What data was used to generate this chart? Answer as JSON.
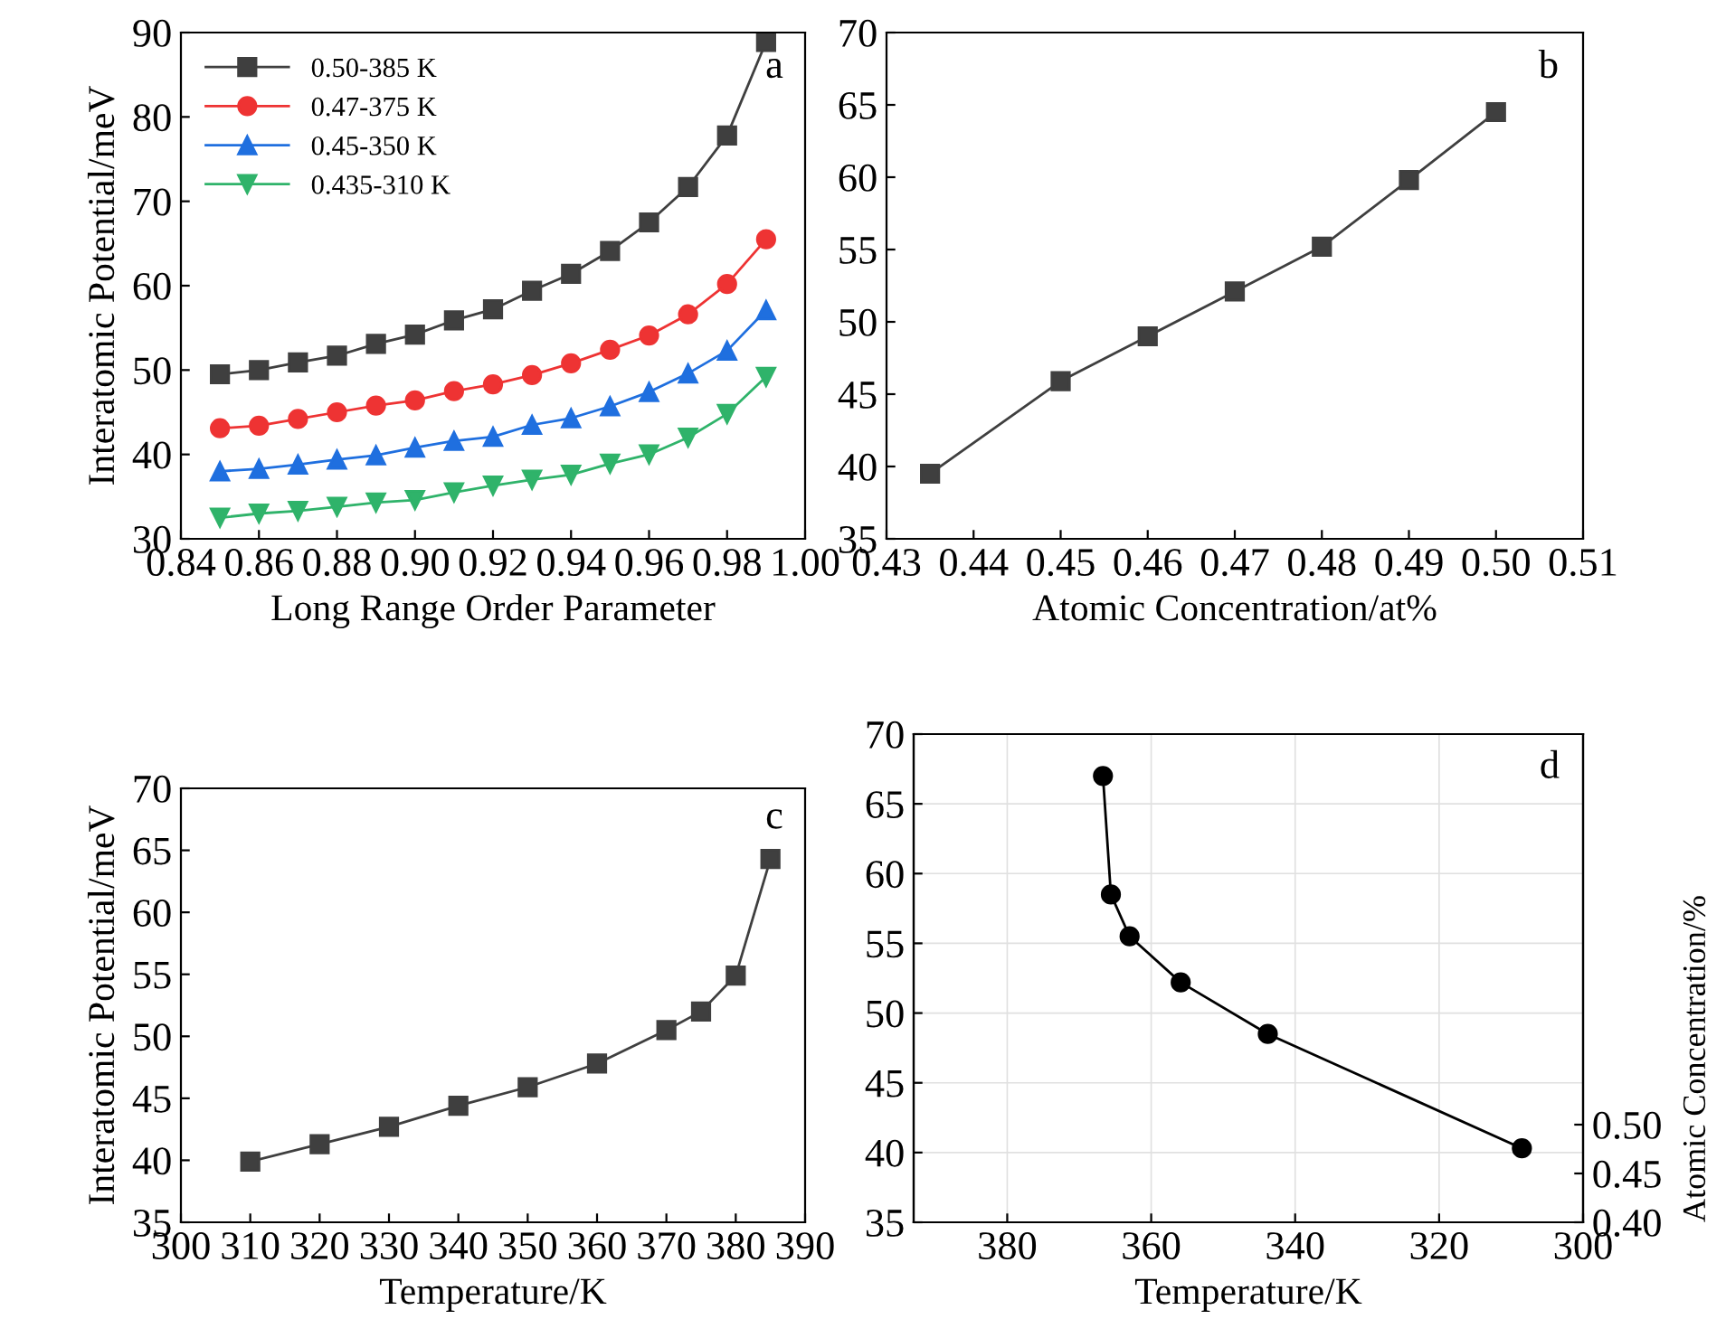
{
  "chart_data": [
    {
      "type": "line",
      "xlabel": "Long Range Order Parameter",
      "ylabel": "Interatomic Potential/meV",
      "annotations": [
        "a"
      ],
      "x": [
        0.85,
        0.86,
        0.87,
        0.88,
        0.89,
        0.9,
        0.91,
        0.92,
        0.93,
        0.94,
        0.95,
        0.96,
        0.97,
        0.98,
        0.99
      ],
      "series": [
        {
          "name": "0.50-385 K",
          "color": "#3f3f3f",
          "marker": "square",
          "values": [
            49.5,
            50.0,
            50.9,
            51.7,
            53.1,
            54.2,
            55.9,
            57.2,
            59.4,
            61.4,
            64.1,
            67.5,
            71.7,
            77.8,
            88.9
          ]
        },
        {
          "name": "0.47-375 K",
          "color": "#ee3333",
          "marker": "circle",
          "values": [
            43.1,
            43.4,
            44.2,
            45.0,
            45.8,
            46.4,
            47.5,
            48.3,
            49.4,
            50.8,
            52.4,
            54.1,
            56.6,
            60.2,
            65.5
          ]
        },
        {
          "name": "0.45-350 K",
          "color": "#1f6fdf",
          "marker": "triangle",
          "values": [
            38.0,
            38.3,
            38.8,
            39.4,
            39.9,
            40.8,
            41.6,
            42.1,
            43.5,
            44.3,
            45.7,
            47.4,
            49.6,
            52.3,
            57.1
          ]
        },
        {
          "name": "0.435-310 K",
          "color": "#2fb36a",
          "marker": "triangle_down",
          "values": [
            32.5,
            33.0,
            33.3,
            33.8,
            34.3,
            34.6,
            35.5,
            36.3,
            37.0,
            37.6,
            38.9,
            40.0,
            42.0,
            44.8,
            49.2
          ]
        }
      ],
      "xlim": [
        0.84,
        1.0
      ],
      "xticks": [
        0.84,
        0.86,
        0.88,
        {
          "value": 0.9,
          "label": "0.90"
        },
        0.92,
        0.94,
        0.96,
        0.98,
        {
          "value": 1.0,
          "label": "1.00"
        }
      ],
      "ylim": [
        30,
        90
      ],
      "yticks": [
        30,
        40,
        50,
        60,
        70,
        80,
        90
      ],
      "legend": "top left",
      "grid": false
    },
    {
      "type": "line",
      "xlabel": "Atomic Concentration/at%",
      "annotations": [
        "b"
      ],
      "x": [
        0.435,
        0.45,
        0.46,
        0.47,
        0.48,
        0.49,
        0.5
      ],
      "series": [
        {
          "color": "#3f3f3f",
          "marker": "square",
          "values": [
            39.5,
            45.9,
            49.0,
            52.1,
            55.2,
            59.8,
            64.5
          ]
        }
      ],
      "xlim": [
        0.43,
        0.51
      ],
      "xticks": [
        0.43,
        0.44,
        0.45,
        0.46,
        0.47,
        0.48,
        0.49,
        {
          "value": 0.5,
          "label": "0.50"
        },
        0.51
      ],
      "ylim": [
        35,
        70
      ],
      "yticks": [
        35,
        40,
        45,
        50,
        55,
        60,
        65,
        70
      ],
      "grid": false
    },
    {
      "type": "line",
      "xlabel": "Temperature/K",
      "ylabel": "Interatomic Potential/meV",
      "annotations": [
        "c"
      ],
      "x": [
        310,
        320,
        330,
        340,
        350,
        360,
        370,
        375,
        380,
        385
      ],
      "series": [
        {
          "color": "#3f3f3f",
          "marker": "square",
          "values": [
            39.9,
            41.3,
            42.7,
            44.4,
            45.9,
            47.8,
            50.5,
            52.0,
            54.9,
            64.3
          ]
        }
      ],
      "xlim": [
        300,
        390
      ],
      "xticks": [
        300,
        310,
        320,
        330,
        340,
        350,
        360,
        370,
        380,
        390
      ],
      "ylim": [
        35,
        70
      ],
      "yticks": [
        35,
        40,
        45,
        50,
        55,
        60,
        65,
        70
      ],
      "grid": false
    },
    {
      "type": "line",
      "xlabel": "Temperature/K",
      "y2label": "Atomic Concentration/%",
      "annotations": [
        "d"
      ],
      "x": [
        366.7,
        365.6,
        363,
        355.9,
        343.8,
        308.5
      ],
      "series": [
        {
          "color": "#000000",
          "marker": "circle",
          "values": [
            67,
            58.5,
            55.5,
            52.2,
            48.5,
            40.3
          ]
        }
      ],
      "xlim": [
        393,
        300
      ],
      "xticks": [
        380,
        360,
        340,
        320,
        300
      ],
      "y2lim": [
        0.4,
        0.9
      ],
      "y2ticks": [
        {
          "value": 0.4,
          "label": "0.40"
        },
        0.45,
        {
          "value": 0.5,
          "label": "0.50"
        }
      ],
      "ylim": [
        35,
        70
      ],
      "yticks": [
        35,
        40,
        45,
        50,
        55,
        60,
        65,
        70
      ],
      "grid": true
    }
  ]
}
